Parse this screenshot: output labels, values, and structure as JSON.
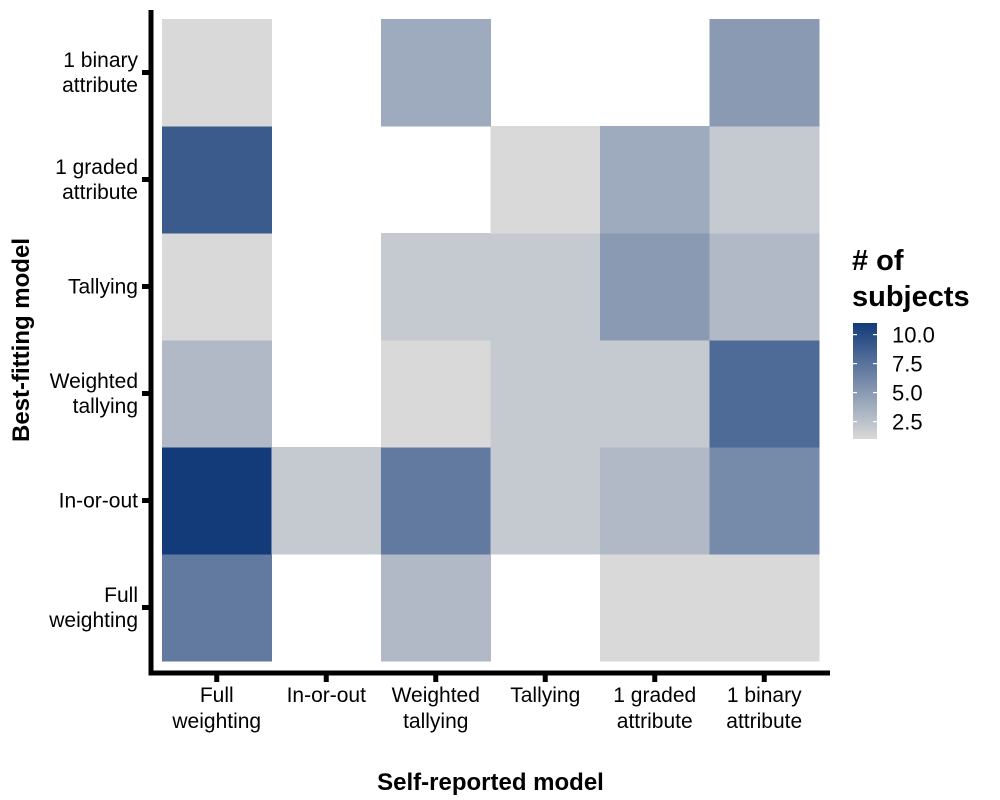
{
  "chart_data": {
    "type": "heatmap",
    "xlabel": "Self-reported model",
    "ylabel": "Best-fitting model",
    "x_categories": [
      [
        "Full",
        "weighting"
      ],
      [
        "In-or-out"
      ],
      [
        "Weighted",
        "tallying"
      ],
      [
        "Tallying"
      ],
      [
        "1 graded",
        "attribute"
      ],
      [
        "1 binary",
        "attribute"
      ]
    ],
    "y_categories": [
      [
        "Full",
        "weighting"
      ],
      [
        "In-or-out"
      ],
      [
        "Weighted",
        "tallying"
      ],
      [
        "Tallying"
      ],
      [
        "1 graded",
        "attribute"
      ],
      [
        "1 binary",
        "attribute"
      ]
    ],
    "values": [
      [
        7,
        null,
        3,
        null,
        1,
        1
      ],
      [
        11,
        2,
        7,
        2,
        3,
        6
      ],
      [
        3,
        null,
        1,
        2,
        2,
        8
      ],
      [
        1,
        null,
        2,
        2,
        5,
        3
      ],
      [
        9,
        null,
        null,
        1,
        4,
        2
      ],
      [
        1,
        null,
        4,
        null,
        null,
        5
      ]
    ],
    "legend": {
      "title": [
        "# of",
        "subjects"
      ],
      "ticks": [
        10.0,
        7.5,
        5.0,
        2.5
      ],
      "tick_labels": [
        "10.0",
        "7.5",
        "5.0",
        "2.5"
      ],
      "range": [
        1,
        11
      ],
      "low_color": "#d9d9d9",
      "high_color": "#133b7a",
      "placement": "right"
    },
    "grid": false
  }
}
